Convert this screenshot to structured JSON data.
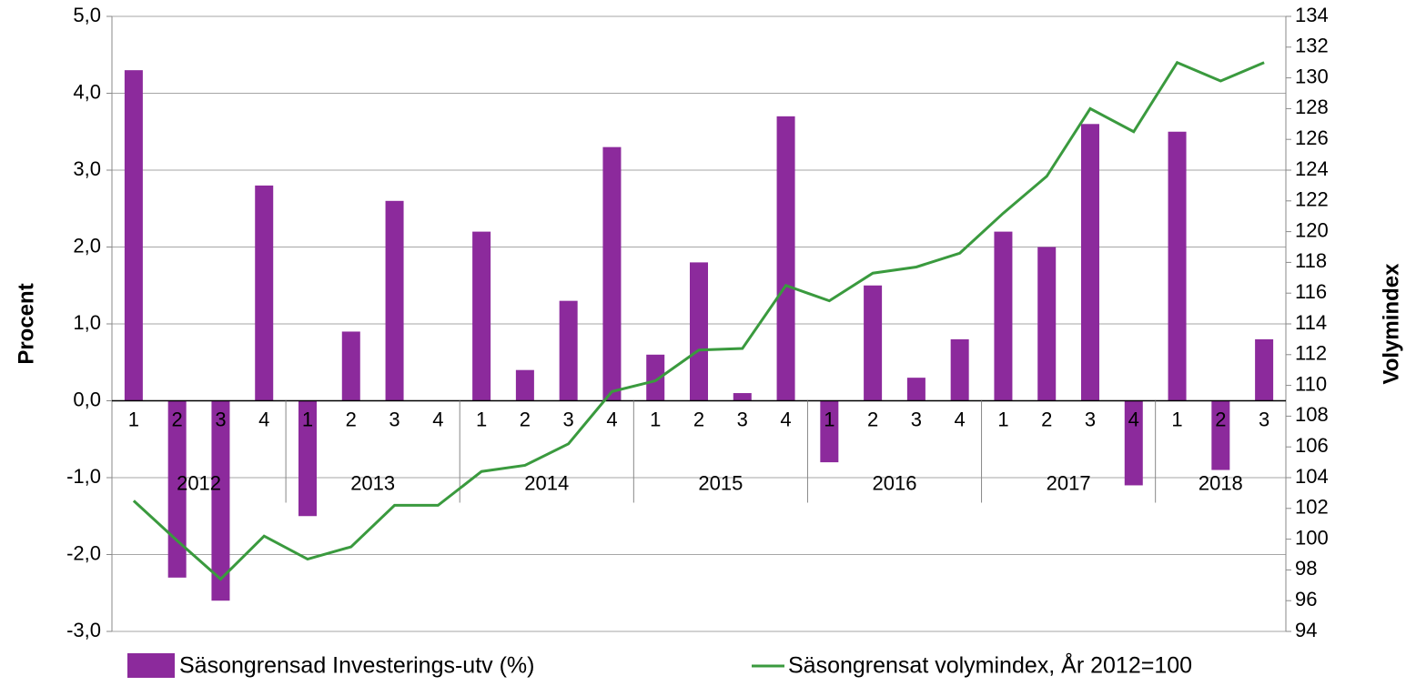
{
  "chart_data": {
    "type": "bar_line",
    "categories": [
      "1",
      "2",
      "3",
      "4",
      "1",
      "2",
      "3",
      "4",
      "1",
      "2",
      "3",
      "4",
      "1",
      "2",
      "3",
      "4",
      "1",
      "2",
      "3",
      "4",
      "1",
      "2",
      "3",
      "4",
      "1",
      "2",
      "3"
    ],
    "groups": [
      "2012",
      "2013",
      "2014",
      "2015",
      "2016",
      "2017",
      "2018"
    ],
    "series": [
      {
        "name": "Säsongrensad Investerings-utv (%)",
        "type": "bar",
        "color": "#8c2a9c",
        "values": [
          4.3,
          -2.3,
          -2.6,
          2.8,
          -1.5,
          0.9,
          2.6,
          0.0,
          2.2,
          0.4,
          1.3,
          3.3,
          0.6,
          1.8,
          0.1,
          3.7,
          -0.8,
          1.5,
          0.3,
          0.8,
          2.2,
          2.0,
          3.6,
          -1.1,
          3.5,
          -0.9,
          0.8
        ]
      },
      {
        "name": "Säsongrensat volymindex, År 2012=100",
        "type": "line",
        "axis": "y2",
        "color": "#3a9a3e",
        "values": [
          102.5,
          99.9,
          97.4,
          100.2,
          98.7,
          99.5,
          102.2,
          102.2,
          104.4,
          104.8,
          106.2,
          109.6,
          110.3,
          112.3,
          112.4,
          116.5,
          115.5,
          117.3,
          117.7,
          118.6,
          121.2,
          123.6,
          128.0,
          126.5,
          131.0,
          129.8,
          131.0
        ]
      }
    ],
    "ylabel": "Procent",
    "y2label": "Volymindex",
    "ylim": [
      -3,
      5
    ],
    "yticks": [
      {
        "value": -3,
        "label": "-3,0"
      },
      {
        "value": -2,
        "label": "-2,0"
      },
      {
        "value": -1,
        "label": "-1,0"
      },
      {
        "value": 0,
        "label": "0,0"
      },
      {
        "value": 1,
        "label": "1,0"
      },
      {
        "value": 2,
        "label": "2,0"
      },
      {
        "value": 3,
        "label": "3,0"
      },
      {
        "value": 4,
        "label": "4,0"
      },
      {
        "value": 5,
        "label": "5,0"
      }
    ],
    "y2lim": [
      94,
      134
    ],
    "y2ticks": [
      94,
      96,
      98,
      100,
      102,
      104,
      106,
      108,
      110,
      112,
      114,
      116,
      118,
      120,
      122,
      124,
      126,
      128,
      130,
      132,
      134
    ],
    "grid": true,
    "legend": "bottom"
  }
}
